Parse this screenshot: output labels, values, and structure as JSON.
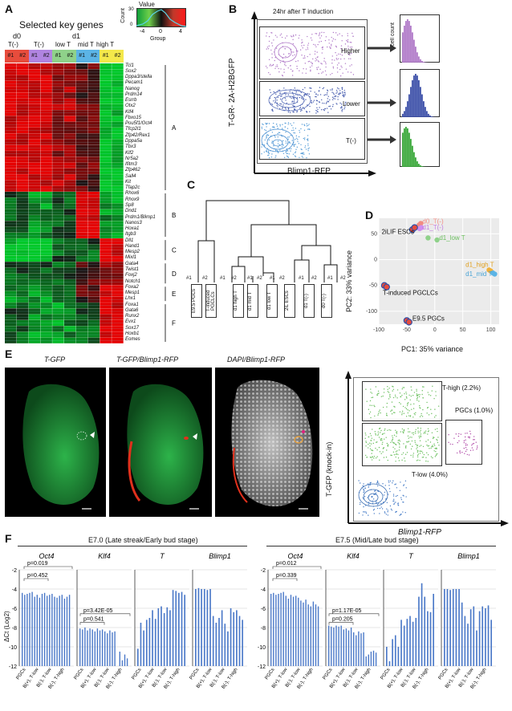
{
  "panels": {
    "A": "A",
    "B": "B",
    "C": "C",
    "D": "D",
    "E": "E",
    "F": "F"
  },
  "panel_a": {
    "title": "Selected key genes",
    "d0": "d0",
    "d1": "d1",
    "t_neg": "T(-)",
    "t_neg2": "T(-)",
    "low_t": "low T",
    "mid_t": "mid T",
    "high_t": "high T",
    "reps": [
      "#1",
      "#2",
      "#1",
      "#2",
      "#1",
      "#2",
      "#1",
      "#2",
      "#1",
      "#2"
    ],
    "legend_title": "Value",
    "legend_ylabel": "Count",
    "legend_xlabel": "Group",
    "legend_ticks": [
      "-4",
      "0",
      "4"
    ],
    "legend_yticks": [
      "0",
      "30"
    ],
    "genes": [
      "Tcl1",
      "Sox2",
      "Dppa3/stella",
      "Pecam1",
      "Nanog",
      "Prdm14",
      "Esrrb",
      "Otx2",
      "Klf4",
      "Fbxo15",
      "Pou5f1/Oct4",
      "Tfcp2l1",
      "Zfp42/Rex1",
      "Dppa5a",
      "Tbx3",
      "Klf2",
      "Nr5a2",
      "Ifitm3",
      "Zfp462",
      "Sall4",
      "Kit",
      "Tfap2c",
      "Rhox6",
      "Rhox9",
      "Sp8",
      "Dnd1",
      "Prdm1/Blimp1",
      "Nanos3",
      "Hoxa1",
      "Itgb3",
      "Dll1",
      "Hand1",
      "Mesp2",
      "Mixl1",
      "Gata4",
      "Twist1",
      "Foxj2",
      "Notch1",
      "Foxa2",
      "Mesp1",
      "Lhx1",
      "Foxa1",
      "Gata6",
      "Runx2",
      "Evx1",
      "Sox17",
      "Hoxb1",
      "Eomes"
    ],
    "clusters": [
      "A",
      "B",
      "C",
      "D",
      "E",
      "F"
    ]
  },
  "panel_b": {
    "title": "24hr after T induction",
    "ylabel": "T-GR- 2A-H2BGFP",
    "xlabel": "Blimp1-RFP",
    "gates": [
      "Higher",
      "Lower",
      "T(-)"
    ],
    "hist_ylabel": "cell count"
  },
  "panel_c": {
    "leaves": [
      "E9.5 PGCs",
      "T-induced PGCLCs",
      "d1 high T",
      "d1 mid T",
      "d1 low T",
      "2iL ESCs",
      "d1 T(-)",
      "d0 T(-)"
    ]
  },
  "chart_data": [
    {
      "type": "scatter",
      "xlabel": "PC1: 35% variance",
      "ylabel": "PC2: 33% variance",
      "xticks": [
        "-100",
        "-50",
        "0",
        "50",
        "100"
      ],
      "yticks": [
        "-100",
        "-50",
        "0",
        "50"
      ],
      "xlim": [
        -100,
        115
      ],
      "ylim": [
        -125,
        80
      ],
      "series": [
        {
          "name": "d0_T(-)",
          "color": "#f28b82",
          "points": [
            [
              -28,
              67
            ],
            [
              -25,
              70
            ]
          ]
        },
        {
          "name": "d1_T(-)",
          "color": "#d08ef0",
          "points": [
            [
              -27,
              60
            ],
            [
              -24,
              62
            ]
          ]
        },
        {
          "name": "2iLIF ESCs",
          "color": "#e74c3c",
          "points": [
            [
              -40,
              58
            ],
            [
              -36,
              62
            ]
          ]
        },
        {
          "name": "d1_low T",
          "color": "#8fd18a",
          "points": [
            [
              -12,
              42
            ],
            [
              4,
              38
            ]
          ]
        },
        {
          "name": "d1_high T",
          "color": "#f0b13a",
          "points": [
            [
              97,
              -20
            ],
            [
              100,
              -22
            ]
          ]
        },
        {
          "name": "d1_mid T",
          "color": "#5bb4e6",
          "points": [
            [
              104,
              -26
            ],
            [
              107,
              -28
            ]
          ]
        },
        {
          "name": "T-induced PGCLCs",
          "color": "#e74c3c",
          "points": [
            [
              -90,
              -50
            ],
            [
              -86,
              -53
            ]
          ]
        },
        {
          "name": "E9.5 PGCs",
          "color": "#e74c3c",
          "points": [
            [
              -50,
              -118
            ],
            [
              -46,
              -121
            ]
          ]
        }
      ]
    }
  ],
  "panel_d_labels": [
    "d0_T(-)",
    "d1_T(-)",
    "2iLIF ESCs",
    "d1_low T",
    "d1_high T",
    "d1_mid T",
    "T-induced PGCLCs",
    "E9.5 PGCs"
  ],
  "panel_e": {
    "img1": "T-GFP",
    "img2": "T-GFP/Blimp1-RFP",
    "img3": "DAPI/Blimp1-RFP",
    "ylabel": "T-GFP (knock-in)",
    "xlabel": "Blimp1-RFP",
    "gate_high": "T-high (2.2%)",
    "gate_pgc": "PGCs (1.0%)",
    "gate_low": "T-low (4.0%)"
  },
  "panel_f": {
    "left_title": "E7.0 (Late streak/Early bud stage)",
    "right_title": "E7.5 (Mid/Late bud stage)",
    "ylabel": "ΔCt (Log2)",
    "yticks": [
      "-2",
      "-4",
      "-6",
      "-8",
      "-10",
      "-12"
    ],
    "genes": [
      "Oct4",
      "Klf4",
      "T",
      "Blimp1"
    ],
    "groups": [
      "PGCs",
      "B(+), T-low",
      "B(-), T-low",
      "B(-), T-high"
    ],
    "left_p": {
      "oct4_a": "p=0.019",
      "oct4_b": "p=0.452",
      "klf4_a": "p=3.42E-05",
      "klf4_b": "p=0.541"
    },
    "right_p": {
      "oct4_a": "p=0.012",
      "oct4_b": "p=0.339",
      "klf4_a": "p=1.17E-05",
      "klf4_b": "p=0.205"
    },
    "bars": {
      "left": {
        "Oct4": [
          -4.4,
          -4.6,
          -4.5,
          -4.4,
          -4.3,
          -4.8,
          -4.6,
          -4.9,
          -4.5,
          -4.4,
          -4.7,
          -4.6,
          -4.5,
          -4.8,
          -4.9,
          -4.7,
          -4.6,
          -5.0,
          -4.8,
          -4.6
        ],
        "Klf4": [
          -8.1,
          -8.2,
          -8.0,
          -8.3,
          -8.1,
          -8.2,
          -8.4,
          -8.1,
          -8.3,
          -8.2,
          -8.4,
          -8.6,
          -8.3,
          -8.5,
          -8.4,
          -12.0,
          -10.5,
          -11.4,
          -10.8,
          -11.2
        ],
        "T": [
          -10.2,
          -7.5,
          -8.3,
          -7.2,
          -7.0,
          -6.2,
          -7.1,
          -6.0,
          -5.8,
          -6.5,
          -5.9,
          -6.2,
          -4.1,
          -4.2,
          -4.4,
          -4.3,
          -4.6
        ],
        "Blimp1": [
          -4.0,
          -3.9,
          -4.0,
          -4.0,
          -4.1,
          -4.0,
          -6.8,
          -7.5,
          -7.0,
          -6.2,
          -7.6,
          -8.4,
          -6.0,
          -6.4,
          -6.2,
          -6.8,
          -7.2
        ]
      },
      "right": {
        "Oct4": [
          -4.5,
          -4.4,
          -4.6,
          -4.5,
          -4.4,
          -4.3,
          -4.7,
          -5.0,
          -4.6,
          -4.8,
          -4.7,
          -4.9,
          -5.2,
          -5.4,
          -5.1,
          -5.6,
          -5.8,
          -5.3,
          -5.6,
          -5.8
        ],
        "Klf4": [
          -7.8,
          -7.9,
          -8.0,
          -7.8,
          -7.9,
          -7.8,
          -8.2,
          -8.1,
          -8.3,
          -8.0,
          -8.5,
          -8.8,
          -8.4,
          -8.6,
          -8.5,
          -11.0,
          -10.8,
          -10.5,
          -10.4,
          -10.6
        ],
        "T": [
          -10.0,
          -11.5,
          -9.2,
          -8.8,
          -10.0,
          -7.2,
          -7.8,
          -7.1,
          -6.8,
          -7.4,
          -7.0,
          -4.8,
          -3.4,
          -4.8,
          -6.3,
          -6.4,
          -4.5
        ],
        "Blimp1": [
          -4.0,
          -4.0,
          -4.1,
          -4.0,
          -4.0,
          -4.0,
          -5.4,
          -6.8,
          -7.6,
          -6.1,
          -5.8,
          -8.3,
          -6.3,
          -5.8,
          -6.0,
          -5.7,
          -7.2
        ]
      }
    }
  }
}
